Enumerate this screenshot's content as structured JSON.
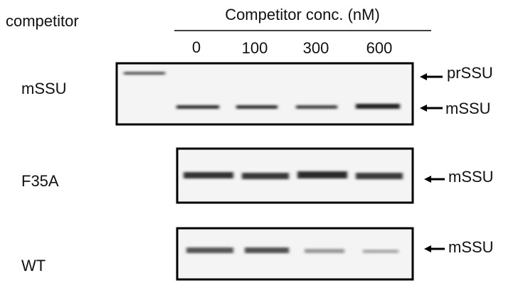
{
  "header": {
    "row_label": "competitor",
    "title": "Competitor conc. (nM)",
    "concentrations": [
      "0",
      "100",
      "300",
      "600"
    ]
  },
  "panels": [
    {
      "label": "mSSU",
      "arrows": [
        "prSSU",
        "mSSU"
      ]
    },
    {
      "label": "F35A",
      "arrows": [
        "mSSU"
      ]
    },
    {
      "label": "WT",
      "arrows": [
        "mSSU"
      ]
    }
  ]
}
